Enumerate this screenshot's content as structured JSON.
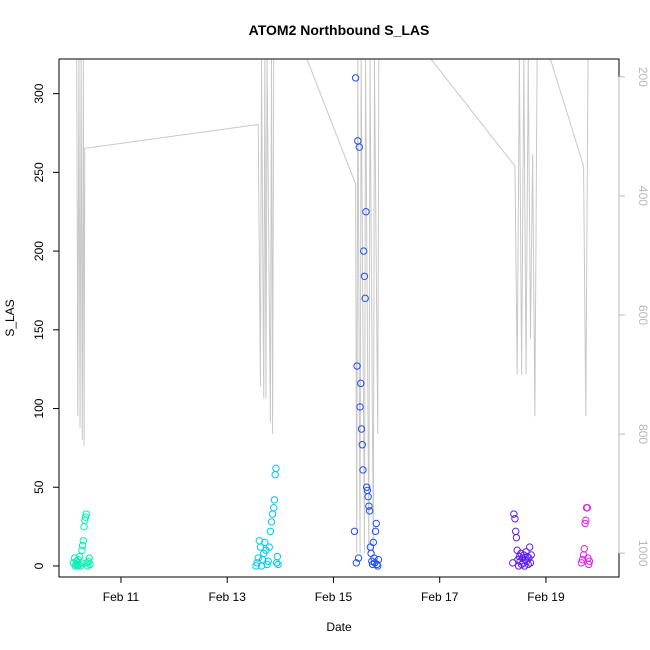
{
  "chart_data": {
    "type": "scatter",
    "title": "ATOM2 Northbound S_LAS",
    "xlabel": "Date",
    "ylabel": "S_LAS",
    "xlim": [
      "2024-02-09T20:00",
      "2024-02-20T09:00"
    ],
    "ylim": [
      -7,
      322
    ],
    "x_ticks": [
      {
        "label": "Feb 11",
        "value": "2024-02-11T00:00"
      },
      {
        "label": "Feb 13",
        "value": "2024-02-13T00:00"
      },
      {
        "label": "Feb 15",
        "value": "2024-02-15T00:00"
      },
      {
        "label": "Feb 17",
        "value": "2024-02-17T00:00"
      },
      {
        "label": "Feb 19",
        "value": "2024-02-19T00:00"
      }
    ],
    "y_ticks": [
      0,
      50,
      100,
      150,
      200,
      250,
      300
    ],
    "secondary_axis": {
      "side": "right",
      "reversed": true,
      "ylim": [
        1040,
        170
      ],
      "ticks": [
        200,
        400,
        600,
        800,
        1000
      ],
      "color": "#b9b9b9"
    },
    "depth_trace": {
      "color": "#c8c8c8",
      "points": [
        [
          "2024-02-10T04:00",
          170
        ],
        [
          "2024-02-10T04:30",
          770
        ],
        [
          "2024-02-10T05:00",
          170
        ],
        [
          "2024-02-10T05:30",
          790
        ],
        [
          "2024-02-10T06:00",
          170
        ],
        [
          "2024-02-10T06:30",
          810
        ],
        [
          "2024-02-10T07:00",
          170
        ],
        [
          "2024-02-10T07:20",
          820
        ],
        [
          "2024-02-10T07:40",
          320
        ],
        [
          "2024-02-13T14:00",
          280
        ],
        [
          "2024-02-13T15:00",
          720
        ],
        [
          "2024-02-13T15:30",
          170
        ],
        [
          "2024-02-13T16:30",
          740
        ],
        [
          "2024-02-13T17:00",
          170
        ],
        [
          "2024-02-13T17:30",
          740
        ],
        [
          "2024-02-13T18:00",
          170
        ],
        [
          "2024-02-13T19:30",
          780
        ],
        [
          "2024-02-13T20:00",
          170
        ],
        [
          "2024-02-13T20:30",
          800
        ],
        [
          "2024-02-13T21:00",
          170
        ],
        [
          "2024-02-13T21:30",
          170
        ],
        [
          "2024-02-14T12:00",
          170
        ],
        [
          "2024-02-15T10:00",
          380
        ],
        [
          "2024-02-15T10:30",
          1000
        ],
        [
          "2024-02-15T11:00",
          170
        ],
        [
          "2024-02-15T12:00",
          1000
        ],
        [
          "2024-02-15T12:30",
          170
        ],
        [
          "2024-02-15T14:00",
          1000
        ],
        [
          "2024-02-15T14:30",
          170
        ],
        [
          "2024-02-15T16:00",
          1000
        ],
        [
          "2024-02-15T16:30",
          170
        ],
        [
          "2024-02-15T18:00",
          1000
        ],
        [
          "2024-02-15T18:30",
          170
        ],
        [
          "2024-02-15T20:00",
          800
        ],
        [
          "2024-02-15T20:30",
          170
        ],
        [
          "2024-02-15T21:00",
          170
        ],
        [
          "2024-02-16T20:00",
          170
        ],
        [
          "2024-02-18T10:00",
          350
        ],
        [
          "2024-02-18T11:00",
          700
        ],
        [
          "2024-02-18T12:00",
          170
        ],
        [
          "2024-02-18T13:00",
          700
        ],
        [
          "2024-02-18T14:00",
          170
        ],
        [
          "2024-02-18T15:00",
          700
        ],
        [
          "2024-02-18T16:00",
          170
        ],
        [
          "2024-02-18T17:00",
          640
        ],
        [
          "2024-02-18T18:00",
          330
        ],
        [
          "2024-02-18T19:00",
          770
        ],
        [
          "2024-02-18T20:00",
          170
        ],
        [
          "2024-02-19T02:00",
          170
        ],
        [
          "2024-02-19T17:00",
          350
        ],
        [
          "2024-02-19T18:00",
          770
        ],
        [
          "2024-02-19T19:00",
          170
        ]
      ]
    },
    "series": [
      {
        "color": "#00f2b0",
        "points": [
          [
            "2024-02-10T02:30",
            2
          ],
          [
            "2024-02-10T03:00",
            5
          ],
          [
            "2024-02-10T03:20",
            0
          ],
          [
            "2024-02-10T03:40",
            1
          ],
          [
            "2024-02-10T04:00",
            3
          ],
          [
            "2024-02-10T04:20",
            0
          ],
          [
            "2024-02-10T04:40",
            4
          ],
          [
            "2024-02-10T05:00",
            1
          ],
          [
            "2024-02-10T05:20",
            6
          ],
          [
            "2024-02-10T05:40",
            0
          ],
          [
            "2024-02-10T06:00",
            2
          ],
          [
            "2024-02-10T06:20",
            10
          ],
          [
            "2024-02-10T06:40",
            13
          ],
          [
            "2024-02-10T07:00",
            16
          ],
          [
            "2024-02-10T07:20",
            25
          ],
          [
            "2024-02-10T07:40",
            29
          ],
          [
            "2024-02-10T08:00",
            31
          ],
          [
            "2024-02-10T08:20",
            33
          ],
          [
            "2024-02-10T08:40",
            2
          ],
          [
            "2024-02-10T09:00",
            0
          ],
          [
            "2024-02-10T09:20",
            3
          ],
          [
            "2024-02-10T09:40",
            5
          ],
          [
            "2024-02-10T10:00",
            1
          ]
        ]
      },
      {
        "color": "#00c8f0",
        "points": [
          [
            "2024-02-13T13:00",
            0
          ],
          [
            "2024-02-13T13:30",
            2
          ],
          [
            "2024-02-13T14:00",
            5
          ],
          [
            "2024-02-13T14:30",
            16
          ],
          [
            "2024-02-13T15:00",
            12
          ],
          [
            "2024-02-13T15:30",
            0
          ],
          [
            "2024-02-13T16:00",
            4
          ],
          [
            "2024-02-13T16:30",
            8
          ],
          [
            "2024-02-13T17:00",
            15
          ],
          [
            "2024-02-13T17:30",
            10
          ],
          [
            "2024-02-13T18:00",
            1
          ],
          [
            "2024-02-13T18:30",
            3
          ],
          [
            "2024-02-13T19:00",
            12
          ],
          [
            "2024-02-13T19:30",
            22
          ],
          [
            "2024-02-13T20:00",
            28
          ],
          [
            "2024-02-13T20:30",
            33
          ],
          [
            "2024-02-13T21:00",
            37
          ],
          [
            "2024-02-13T21:20",
            42
          ],
          [
            "2024-02-13T21:40",
            58
          ],
          [
            "2024-02-13T22:00",
            62
          ],
          [
            "2024-02-13T22:20",
            2
          ],
          [
            "2024-02-13T22:40",
            6
          ],
          [
            "2024-02-13T23:00",
            1
          ]
        ]
      },
      {
        "color": "#2050f0",
        "points": [
          [
            "2024-02-15T09:30",
            22
          ],
          [
            "2024-02-15T10:00",
            310
          ],
          [
            "2024-02-15T10:20",
            2
          ],
          [
            "2024-02-15T10:40",
            127
          ],
          [
            "2024-02-15T11:00",
            270
          ],
          [
            "2024-02-15T11:20",
            5
          ],
          [
            "2024-02-15T11:40",
            266
          ],
          [
            "2024-02-15T12:00",
            101
          ],
          [
            "2024-02-15T12:20",
            116
          ],
          [
            "2024-02-15T12:40",
            87
          ],
          [
            "2024-02-15T13:00",
            77
          ],
          [
            "2024-02-15T13:20",
            61
          ],
          [
            "2024-02-15T13:40",
            200
          ],
          [
            "2024-02-15T14:00",
            184
          ],
          [
            "2024-02-15T14:20",
            170
          ],
          [
            "2024-02-15T14:40",
            225
          ],
          [
            "2024-02-15T15:00",
            50
          ],
          [
            "2024-02-15T15:20",
            48
          ],
          [
            "2024-02-15T15:40",
            44
          ],
          [
            "2024-02-15T16:00",
            38
          ],
          [
            "2024-02-15T16:20",
            35
          ],
          [
            "2024-02-15T16:40",
            12
          ],
          [
            "2024-02-15T17:00",
            8
          ],
          [
            "2024-02-15T17:20",
            3
          ],
          [
            "2024-02-15T17:40",
            1
          ],
          [
            "2024-02-15T18:00",
            15
          ],
          [
            "2024-02-15T18:20",
            5
          ],
          [
            "2024-02-15T18:40",
            2
          ],
          [
            "2024-02-15T19:00",
            22
          ],
          [
            "2024-02-15T19:20",
            27
          ],
          [
            "2024-02-15T19:40",
            1
          ],
          [
            "2024-02-15T20:00",
            0
          ],
          [
            "2024-02-15T20:20",
            4
          ]
        ]
      },
      {
        "color": "#6020e8",
        "points": [
          [
            "2024-02-18T09:00",
            2
          ],
          [
            "2024-02-18T09:30",
            33
          ],
          [
            "2024-02-18T10:00",
            30
          ],
          [
            "2024-02-18T10:20",
            22
          ],
          [
            "2024-02-18T10:40",
            18
          ],
          [
            "2024-02-18T11:00",
            10
          ],
          [
            "2024-02-18T11:20",
            4
          ],
          [
            "2024-02-18T11:40",
            0
          ],
          [
            "2024-02-18T12:00",
            6
          ],
          [
            "2024-02-18T12:20",
            3
          ],
          [
            "2024-02-18T12:40",
            8
          ],
          [
            "2024-02-18T13:00",
            1
          ],
          [
            "2024-02-18T13:20",
            5
          ],
          [
            "2024-02-18T13:40",
            2
          ],
          [
            "2024-02-18T14:00",
            7
          ],
          [
            "2024-02-18T14:20",
            0
          ],
          [
            "2024-02-18T14:40",
            4
          ],
          [
            "2024-02-18T15:00",
            9
          ],
          [
            "2024-02-18T15:20",
            3
          ],
          [
            "2024-02-18T15:40",
            6
          ],
          [
            "2024-02-18T16:00",
            1
          ],
          [
            "2024-02-18T16:20",
            5
          ],
          [
            "2024-02-18T16:40",
            12
          ],
          [
            "2024-02-18T17:00",
            2
          ],
          [
            "2024-02-18T17:20",
            7
          ]
        ]
      },
      {
        "color": "#e020e8",
        "points": [
          [
            "2024-02-19T16:00",
            2
          ],
          [
            "2024-02-19T16:30",
            4
          ],
          [
            "2024-02-19T17:00",
            7
          ],
          [
            "2024-02-19T17:20",
            11
          ],
          [
            "2024-02-19T17:40",
            27
          ],
          [
            "2024-02-19T18:00",
            29
          ],
          [
            "2024-02-19T18:20",
            37
          ],
          [
            "2024-02-19T18:40",
            37
          ],
          [
            "2024-02-19T19:00",
            5
          ],
          [
            "2024-02-19T19:20",
            1
          ],
          [
            "2024-02-19T19:40",
            3
          ]
        ]
      }
    ],
    "marker": "open-circle",
    "grid": false,
    "legend": "none"
  }
}
